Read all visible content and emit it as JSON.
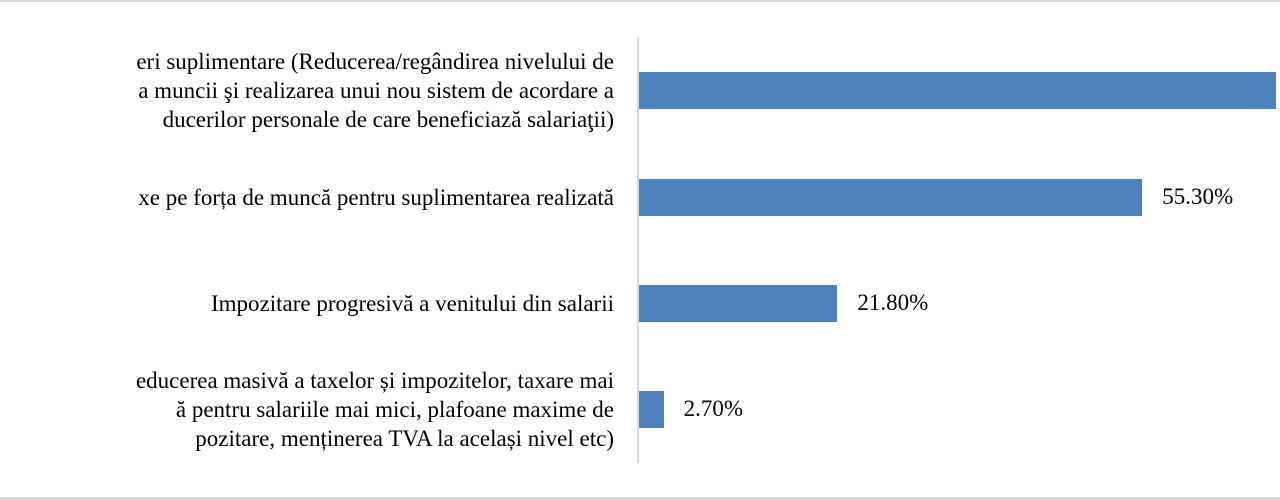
{
  "chart_data": {
    "type": "bar",
    "orientation": "horizontal",
    "categories": [
      "eri suplimentare (Reducerea/regândirea nivelului de\na muncii şi realizarea unui nou sistem de acordare a\nducerilor personale de care beneficiază salariaţii)",
      "xe pe forța de muncă pentru suplimentarea realizată",
      "Impozitare progresivă a venitului din salarii",
      "educerea masivă a taxelor și impozitelor, taxare mai\nă pentru salariile mai mici, plafoane maxime de\npozitare, menținerea TVA la același nivel etc)"
    ],
    "values": [
      70,
      55.3,
      21.8,
      2.7
    ],
    "value_labels": [
      "",
      "55.30%",
      "21.80%",
      "2.70%"
    ],
    "xlim": [
      0,
      100
    ],
    "grid": false,
    "bar_color": "#4f81bd",
    "title": "",
    "xlabel": "",
    "ylabel": ""
  }
}
